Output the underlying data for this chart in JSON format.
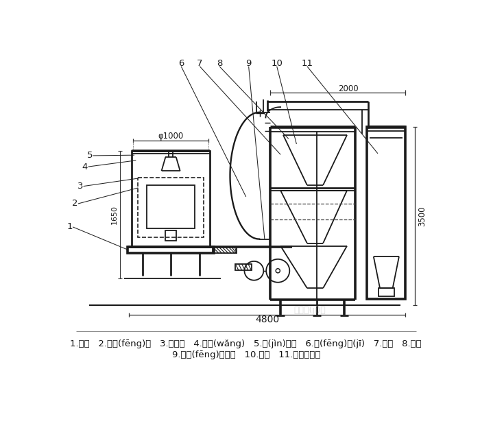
{
  "bg_color": "#ffffff",
  "line_color": "#1a1a1a",
  "lw": 1.3,
  "label_line1": "1.底座   2.回風(fēng)道   3.激振器   4.篩網(wǎng)   5.進(jìn)料斗   6.風(fēng)機(jī)   7.絞龍   8.料倉",
  "label_line2": "9.旋風(fēng)分離器   10.支架   11.布袋除塵器",
  "dim_phi1000": "φ1000",
  "dim_1650": "1650",
  "dim_2000": "2000",
  "dim_3500": "3500",
  "dim_4800": "4800",
  "numbers_top": [
    "6",
    "7",
    "8",
    "9",
    "10",
    "11"
  ],
  "numbers_left": [
    "5",
    "4",
    "3",
    "2",
    "1"
  ]
}
